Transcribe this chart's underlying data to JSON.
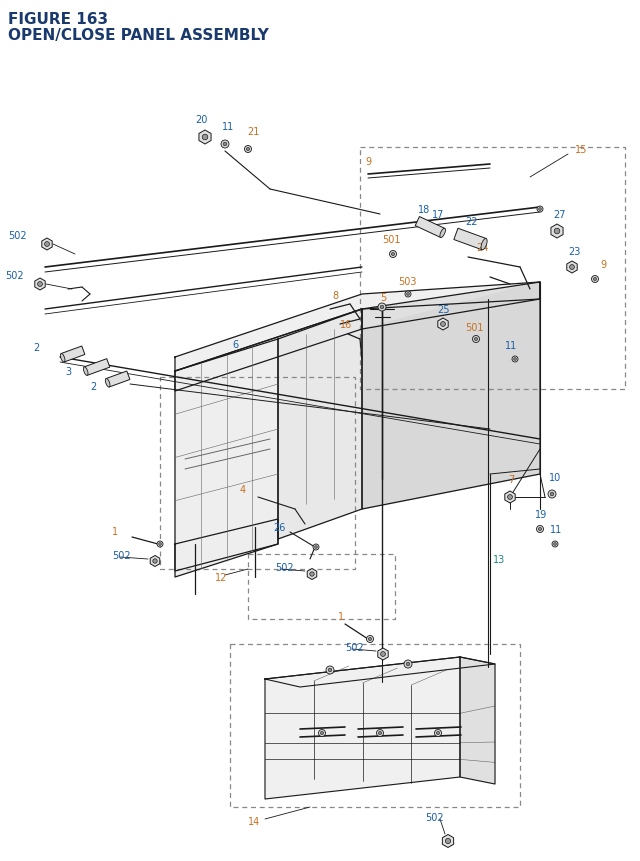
{
  "title_line1": "FIGURE 163",
  "title_line2": "OPEN/CLOSE PANEL ASSEMBLY",
  "title_color": "#1a3a6e",
  "title_fontsize": 11,
  "bg_color": "#ffffff",
  "blue": "#1a5fa8",
  "orange": "#c87020",
  "teal": "#1a8a8a",
  "black": "#1a1a1a",
  "gray": "#666666",
  "lgray": "#aaaaaa"
}
